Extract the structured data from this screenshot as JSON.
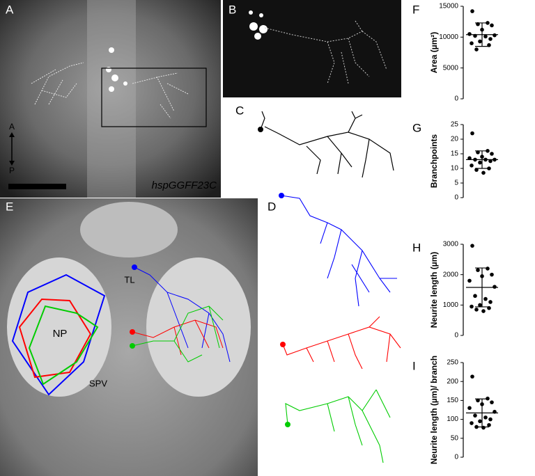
{
  "panel_labels": [
    "A",
    "B",
    "C",
    "D",
    "E"
  ],
  "annotations": {
    "anterior": "A",
    "posterior": "P",
    "line": "hspGGFF23C",
    "np": "NP",
    "tl": "TL",
    "spv": "SPV"
  },
  "chart_data": [
    {
      "type": "dotplot",
      "panel": "F",
      "ylabel": "Area (µm²)",
      "color": "#000000",
      "values": [
        14200,
        12300,
        12100,
        11900,
        11200,
        10500,
        10300,
        10200,
        10100,
        9700,
        9300,
        9000,
        8700,
        8000
      ],
      "mean": 10400,
      "sd": 1900,
      "ylim": [
        0,
        15000
      ],
      "yticks": [
        0,
        5000,
        10000,
        15000
      ]
    },
    {
      "type": "dotplot",
      "panel": "G",
      "ylabel": "Branchpoints",
      "color": "#000000",
      "values": [
        22,
        16,
        15.5,
        15,
        14,
        13.5,
        13,
        13,
        13,
        12.5,
        12,
        11,
        10,
        9.5,
        8.5
      ],
      "mean": 13,
      "sd": 3,
      "ylim": [
        0,
        25
      ],
      "yticks": [
        0,
        5,
        10,
        15,
        20,
        25
      ]
    },
    {
      "type": "dotplot",
      "panel": "H",
      "ylabel": "Neurite length (µm)",
      "color": "#000000",
      "values": [
        2950,
        2200,
        2150,
        2000,
        1950,
        1800,
        1600,
        1300,
        1200,
        1100,
        1000,
        950,
        900,
        850,
        800
      ],
      "mean": 1580,
      "sd": 640,
      "ylim": [
        0,
        3000
      ],
      "yticks": [
        0,
        1000,
        2000,
        3000
      ]
    },
    {
      "type": "dotplot",
      "panel": "I",
      "ylabel": "Neurite length (µm)/ branch",
      "color": "#000000",
      "values": [
        213,
        155,
        150,
        145,
        140,
        130,
        120,
        110,
        105,
        100,
        95,
        90,
        85,
        80,
        78
      ],
      "mean": 117,
      "sd": 37,
      "ylim": [
        0,
        250
      ],
      "yticks": [
        0,
        50,
        100,
        150,
        200,
        250
      ]
    }
  ]
}
